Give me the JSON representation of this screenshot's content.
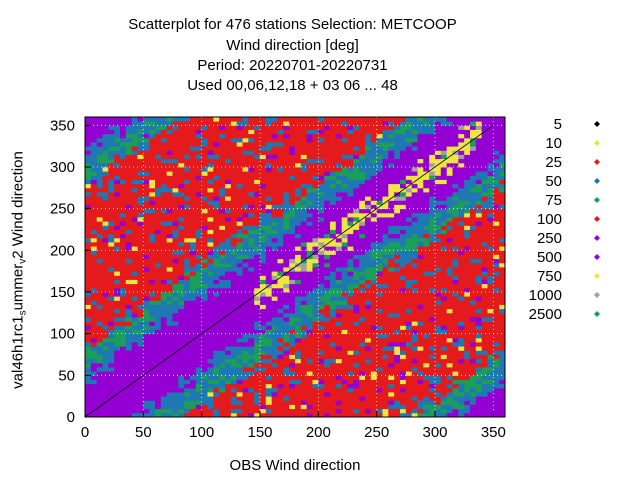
{
  "title": {
    "line1": "Scatterplot for  476 stations Selection: METCOOP",
    "line2": "Wind direction [deg]",
    "line3": "Period: 20220701-20220731",
    "line4": "Used  00,06,12,18  + 03 06 ... 48"
  },
  "axes": {
    "xlabel": "OBS Wind direction",
    "ylabel_pre": "val46h1rc1",
    "ylabel_sub1": "s",
    "ylabel_mid": "ummer",
    "ylabel_sub2": "v",
    "ylabel_post": "2 Wind direction"
  },
  "chart_data": {
    "type": "scatter",
    "subtype": "density heatmap",
    "xlim": [
      0,
      360
    ],
    "ylim": [
      0,
      360
    ],
    "xticks": [
      "0",
      "50",
      "100",
      "150",
      "200",
      "250",
      "300",
      "350"
    ],
    "yticks": [
      "0",
      "50",
      "100",
      "150",
      "200",
      "250",
      "300",
      "350"
    ],
    "grid": true,
    "diagonal_reference_line": true,
    "legend_position": "right",
    "legend": [
      {
        "label": "5",
        "color": "#000000"
      },
      {
        "label": "10",
        "color": "#e8e82a"
      },
      {
        "label": "25",
        "color": "#e41a1c"
      },
      {
        "label": "50",
        "color": "#1f78b4"
      },
      {
        "label": "75",
        "color": "#1a9e5a"
      },
      {
        "label": "100",
        "color": "#e41a1c"
      },
      {
        "label": "250",
        "color": "#9400d3"
      },
      {
        "label": "500",
        "color": "#9400d3"
      },
      {
        "label": "750",
        "color": "#f0e442"
      },
      {
        "label": "1000",
        "color": "#a0a0a0"
      },
      {
        "label": "2500",
        "color": "#1a9e5a"
      }
    ]
  },
  "colors": {
    "purple": "#9400d3",
    "blue": "#1f78b4",
    "green": "#1a9e5a",
    "red": "#e41a1c",
    "yellow": "#f0e442",
    "gray": "#a0a0a0"
  }
}
